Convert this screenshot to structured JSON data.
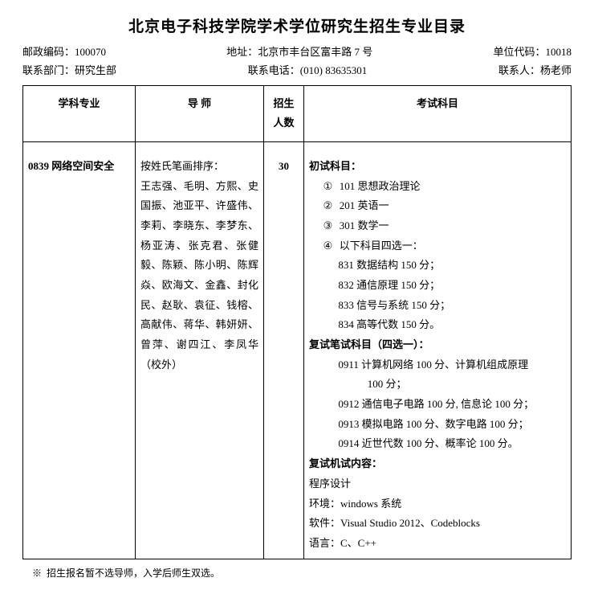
{
  "title": "北京电子科技学院学术学位研究生招生专业目录",
  "info": {
    "row1": {
      "postal_label": "邮政编码：",
      "postal_value": "100070",
      "address_label": "地址：",
      "address_value": "北京市丰台区富丰路 7 号",
      "unitcode_label": "单位代码：",
      "unitcode_value": "10018"
    },
    "row2": {
      "dept_label": "联系部门：",
      "dept_value": "研究生部",
      "phone_label": "联系电话：",
      "phone_value": "(010) 83635301",
      "contact_label": "联系人：",
      "contact_value": "杨老师"
    }
  },
  "table": {
    "headers": {
      "major": "学科专业",
      "advisor": "导  师",
      "quota": "招生\n人数",
      "subjects": "考试科目"
    },
    "row": {
      "major_code": "0839",
      "major_name": "网络空间安全",
      "advisor_intro": "按姓氏笔画排序：",
      "advisors": "王志强、毛明、方熙、史国振、池亚平、许盛伟、李莉、李晓东、李梦东、杨亚涛、张克君、张健毅、陈颖、陈小明、陈辉焱、欧海文、金鑫、封化民、赵耿、袁征、钱榕、高献伟、蒋华、韩妍妍、曾萍、谢四江、李凤华（校外）",
      "quota": "30",
      "subjects": {
        "prelim_label": "初试科目：",
        "item1_num": "①",
        "item1": "101 思想政治理论",
        "item2_num": "②",
        "item2": "201 英语一",
        "item3_num": "③",
        "item3": "301 数学一",
        "item4_num": "④",
        "item4": "以下科目四选一：",
        "opt831": "831 数据结构 150 分；",
        "opt832": "832 通信原理 150 分；",
        "opt833": "833 信号与系统 150 分；",
        "opt834": "834 高等代数 150 分。",
        "re_written_label": "复试笔试科目（四选一）：",
        "re0911": "0911 计算机网络 100 分、计算机组成原理",
        "re0911b": "100 分；",
        "re0912": "0912 通信电子电路 100 分, 信息论 100 分；",
        "re0913": "0913 模拟电路 100 分、数字电路 100 分；",
        "re0914": "0914 近世代数 100 分、概率论 100 分。",
        "re_machine_label": "复试机试内容：",
        "prog": "程序设计",
        "env": "环境：windows  系统",
        "soft": "软件：Visual Studio 2012、Codeblocks",
        "lang": "语言：C、C++"
      }
    }
  },
  "footnote_marker": "※",
  "footnote": "招生报名暂不选导师，入学后师生双选。"
}
